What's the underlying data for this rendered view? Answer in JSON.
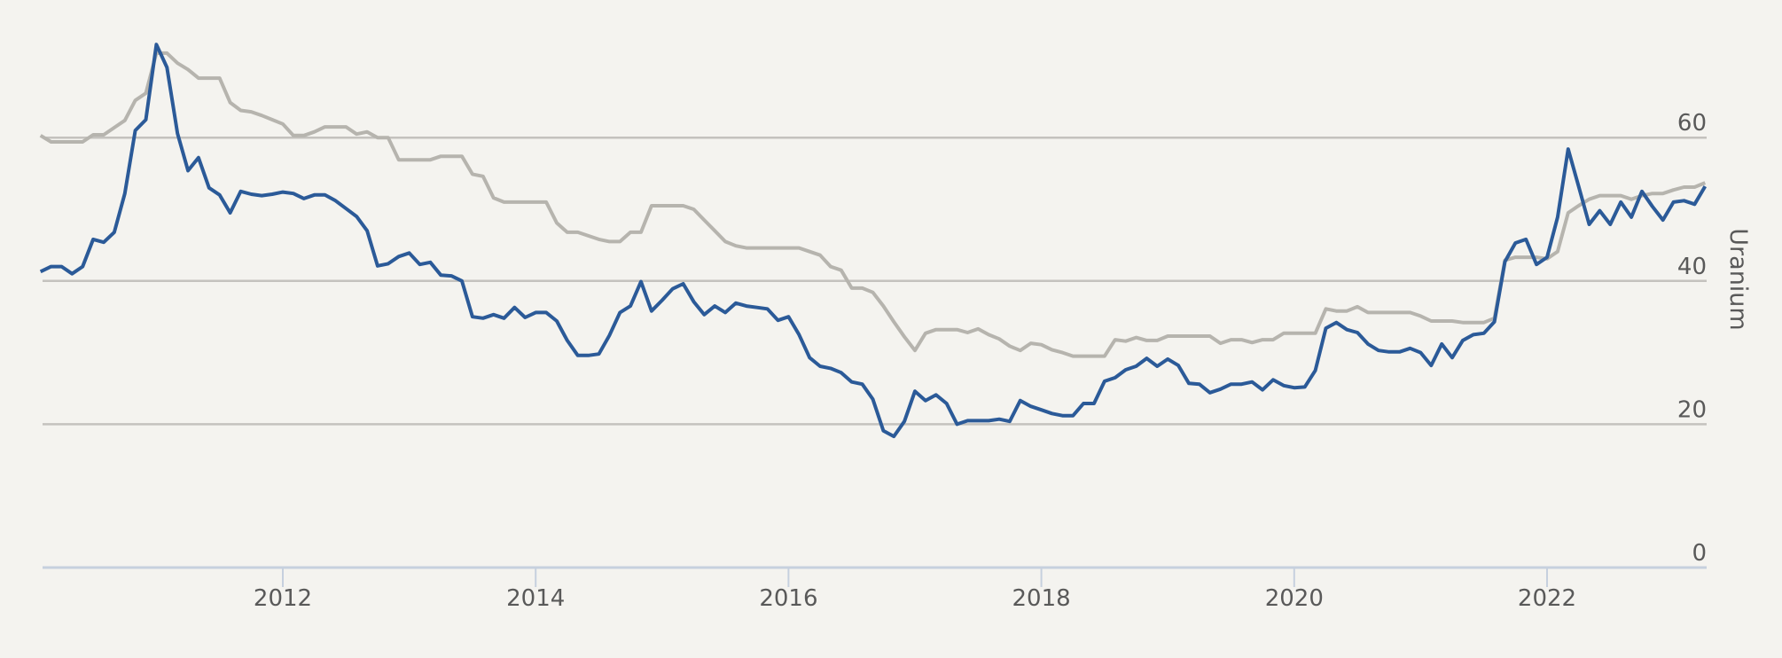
{
  "chart_data": {
    "type": "line",
    "title": "",
    "xlabel": "",
    "ylabel": "Uranium",
    "ylabel_position": "right",
    "ylim": [
      0,
      75
    ],
    "yticks": [
      0,
      20,
      40,
      60
    ],
    "xticks": [
      "2012",
      "2014",
      "2016",
      "2018",
      "2020",
      "2022"
    ],
    "x_start": "2010-02",
    "x_end": "2023-04",
    "x_frequency": "monthly",
    "grid": "horizontal",
    "legend": "none",
    "series": [
      {
        "name": "Uranium (blue)",
        "color": "#2b5a98",
        "values": [
          41.3,
          42.0,
          42.0,
          41.0,
          42.0,
          45.8,
          45.4,
          46.8,
          52.2,
          61.0,
          62.5,
          73.0,
          69.8,
          60.6,
          55.4,
          57.2,
          53.0,
          52.0,
          49.5,
          52.5,
          52.1,
          51.9,
          52.1,
          52.4,
          52.2,
          51.5,
          52.0,
          52.0,
          51.2,
          50.1,
          49.0,
          47.0,
          42.1,
          42.4,
          43.4,
          43.9,
          42.3,
          42.6,
          40.8,
          40.7,
          40.0,
          35.0,
          34.8,
          35.3,
          34.8,
          36.3,
          34.9,
          35.6,
          35.6,
          34.4,
          31.7,
          29.6,
          29.6,
          29.8,
          32.4,
          35.6,
          36.5,
          39.9,
          35.8,
          37.3,
          38.9,
          39.6,
          37.1,
          35.3,
          36.5,
          35.6,
          36.9,
          36.5,
          36.3,
          36.1,
          34.5,
          35.0,
          32.5,
          29.3,
          28.1,
          27.8,
          27.2,
          25.9,
          25.6,
          23.5,
          19.1,
          18.3,
          20.4,
          24.6,
          23.3,
          24.1,
          22.9,
          20.0,
          20.5,
          20.5,
          20.5,
          20.7,
          20.4,
          23.3,
          22.5,
          22.0,
          21.5,
          21.2,
          21.2,
          22.9,
          22.9,
          26.0,
          26.5,
          27.6,
          28.1,
          29.2,
          28.1,
          29.1,
          28.2,
          25.7,
          25.6,
          24.4,
          24.9,
          25.6,
          25.6,
          25.9,
          24.8,
          26.2,
          25.4,
          25.1,
          25.2,
          27.5,
          33.4,
          34.2,
          33.2,
          32.8,
          31.2,
          30.3,
          30.1,
          30.1,
          30.6,
          30.0,
          28.2,
          31.2,
          29.3,
          31.7,
          32.5,
          32.7,
          34.3,
          42.7,
          45.3,
          45.8,
          42.3,
          43.3,
          48.9,
          58.4,
          53.2,
          47.9,
          49.8,
          47.9,
          51.0,
          48.9,
          52.5,
          50.4,
          48.5,
          51.0,
          51.2,
          50.7,
          53.2
        ]
      },
      {
        "name": "Uranium (gray)",
        "color": "#b6b4ae",
        "values": [
          60.3,
          59.4,
          59.4,
          59.4,
          59.4,
          60.4,
          60.4,
          61.4,
          62.4,
          65.2,
          66.2,
          71.8,
          71.8,
          70.4,
          69.5,
          68.3,
          68.3,
          68.3,
          64.9,
          63.8,
          63.6,
          63.1,
          62.5,
          61.9,
          60.3,
          60.3,
          60.8,
          61.5,
          61.5,
          61.5,
          60.5,
          60.8,
          60.0,
          60.0,
          56.9,
          56.9,
          56.9,
          56.9,
          57.4,
          57.4,
          57.4,
          54.9,
          54.6,
          51.6,
          51.0,
          51.0,
          51.0,
          51.0,
          51.0,
          48.1,
          46.8,
          46.8,
          46.3,
          45.8,
          45.5,
          45.5,
          46.8,
          46.8,
          50.5,
          50.5,
          50.5,
          50.5,
          50.0,
          48.5,
          47.0,
          45.5,
          44.9,
          44.6,
          44.6,
          44.6,
          44.6,
          44.6,
          44.6,
          44.1,
          43.6,
          42.0,
          41.5,
          39.0,
          39.0,
          38.4,
          36.5,
          34.3,
          32.2,
          30.3,
          32.7,
          33.2,
          33.2,
          33.2,
          32.8,
          33.3,
          32.5,
          31.9,
          30.9,
          30.3,
          31.3,
          31.1,
          30.4,
          30.0,
          29.5,
          29.5,
          29.5,
          29.5,
          31.8,
          31.6,
          32.1,
          31.7,
          31.7,
          32.3,
          32.3,
          32.3,
          32.3,
          32.3,
          31.3,
          31.8,
          31.8,
          31.4,
          31.8,
          31.8,
          32.7,
          32.7,
          32.7,
          32.7,
          36.1,
          35.8,
          35.8,
          36.4,
          35.6,
          35.6,
          35.6,
          35.6,
          35.6,
          35.1,
          34.4,
          34.4,
          34.4,
          34.2,
          34.2,
          34.2,
          34.8,
          42.9,
          43.3,
          43.3,
          43.3,
          43.1,
          44.1,
          49.5,
          50.5,
          51.4,
          51.9,
          51.9,
          51.9,
          51.4,
          51.9,
          52.2,
          52.2,
          52.7,
          53.1,
          53.1,
          53.7
        ]
      }
    ]
  },
  "axes": {
    "y_title": "Uranium",
    "y_ticks": [
      {
        "label": "60",
        "value": 60
      },
      {
        "label": "40",
        "value": 40
      },
      {
        "label": "20",
        "value": 20
      },
      {
        "label": "0",
        "value": 0
      }
    ],
    "x_ticks": [
      {
        "label": "2012",
        "year": 2012
      },
      {
        "label": "2014",
        "year": 2014
      },
      {
        "label": "2016",
        "year": 2016
      },
      {
        "label": "2018",
        "year": 2018
      },
      {
        "label": "2020",
        "year": 2020
      },
      {
        "label": "2022",
        "year": 2022
      }
    ]
  }
}
